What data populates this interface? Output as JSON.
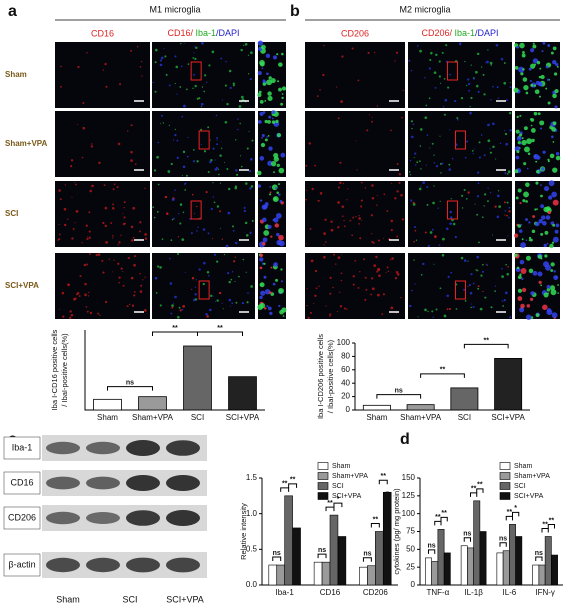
{
  "panel_labels": [
    "a",
    "b",
    "c",
    "d"
  ],
  "microscopy": [
    {
      "title": "M1 microglia",
      "single_stain": "CD16",
      "merge_stain": [
        "CD16/",
        " Iba-1",
        "/DAPI"
      ],
      "rows": [
        "Sham",
        "Sham+VPA",
        "SCI",
        "SCI+VPA"
      ]
    },
    {
      "title": "M2 microglia",
      "single_stain": "CD206",
      "merge_stain": [
        "CD206/",
        " Iba-1",
        "/DAPI"
      ],
      "rows": [
        "Sham",
        "Sham+VPA",
        "SCI",
        "SCI+VPA"
      ]
    }
  ],
  "western_blot": {
    "proteins": [
      "Iba-1",
      "CD16",
      "CD206",
      "β-actin"
    ],
    "lanes": [
      "Sham",
      "SCI",
      "SCI+VPA"
    ]
  },
  "chart_data": [
    {
      "type": "bar",
      "y_label": [
        "Iba I-CD16 positive cells",
        "/ IbaI-positive cells(%)"
      ],
      "categories": [
        "Sham",
        "Sham+VPA",
        "SCI",
        "SCI+VPA"
      ],
      "values": [
        8,
        10,
        48,
        25
      ],
      "colors": [
        "#ffffff",
        "#9a9a9a",
        "#666666",
        "#222222"
      ],
      "ylim": [
        0,
        60
      ],
      "annotations": [
        "ns",
        "**",
        "**"
      ]
    },
    {
      "type": "bar",
      "y_label": [
        "Iba I-CD206 positive cells",
        "/ IbaI-positive cells(%)"
      ],
      "categories": [
        "Sham",
        "Sham+VPA",
        "SCI",
        "SCI+VPA"
      ],
      "values": [
        7,
        8,
        33,
        77
      ],
      "colors": [
        "#ffffff",
        "#9a9a9a",
        "#666666",
        "#222222"
      ],
      "ylim": [
        0,
        100
      ],
      "yticks": [
        0,
        20,
        40,
        60,
        80,
        100
      ],
      "annotations": [
        "ns",
        "**",
        "**"
      ]
    },
    {
      "type": "grouped_bar",
      "y_label": [
        "Relative intensity"
      ],
      "categories": [
        "Iba-1",
        "CD16",
        "CD206"
      ],
      "series": [
        {
          "name": "Sham",
          "color": "#ffffff",
          "values": [
            0.28,
            0.32,
            0.25
          ]
        },
        {
          "name": "Sham+VPA",
          "color": "#9a9a9a",
          "values": [
            0.28,
            0.32,
            0.27
          ]
        },
        {
          "name": "SCI",
          "color": "#666666",
          "values": [
            1.25,
            0.98,
            0.75
          ]
        },
        {
          "name": "SCI+VPA",
          "color": "#111111",
          "values": [
            0.8,
            0.68,
            1.3
          ]
        }
      ],
      "ylim": [
        0,
        1.5
      ],
      "yticks": [
        {
          "value": 0,
          "label": "0.0"
        },
        0.5,
        {
          "value": 1,
          "label": "1.0"
        },
        1.5
      ],
      "legend": "top-right",
      "annotations": [
        [
          "ns",
          "**",
          "**"
        ],
        [
          "ns",
          "**",
          "*"
        ],
        [
          "ns",
          "**",
          "**"
        ]
      ]
    },
    {
      "type": "grouped_bar",
      "y_label": [
        "Contens of inflammation",
        "cytokines (pg/ mg protein)"
      ],
      "categories": [
        "TNF-α",
        "IL-1β",
        "IL-6",
        "IFN-γ"
      ],
      "series": [
        {
          "name": "Sham",
          "color": "#ffffff",
          "values": [
            38,
            55,
            45,
            28
          ]
        },
        {
          "name": "Sham+VPA",
          "color": "#9a9a9a",
          "values": [
            33,
            52,
            48,
            28
          ]
        },
        {
          "name": "SCI",
          "color": "#666666",
          "values": [
            78,
            118,
            85,
            68
          ]
        },
        {
          "name": "SCI+VPA",
          "color": "#111111",
          "values": [
            45,
            75,
            68,
            42
          ]
        }
      ],
      "ylim": [
        0,
        150
      ],
      "yticks": [
        0,
        25,
        50,
        75,
        100,
        125,
        150
      ],
      "legend": "top-right",
      "annotations": [
        [
          "ns",
          "**",
          "**"
        ],
        [
          "ns",
          "**",
          "**"
        ],
        [
          "ns",
          "**",
          "*"
        ],
        [
          "ns",
          "**",
          "**"
        ]
      ]
    }
  ]
}
